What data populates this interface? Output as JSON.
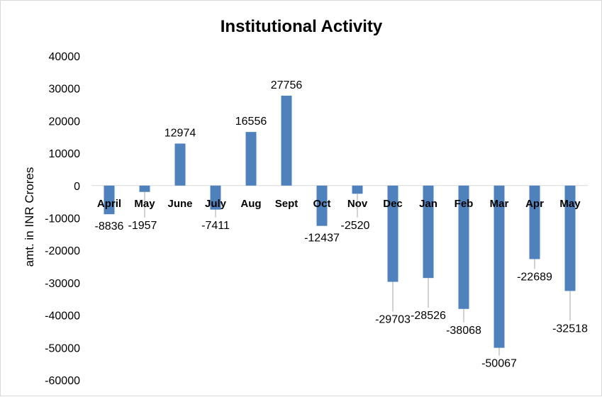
{
  "chart_data": {
    "type": "bar",
    "title": "Institutional Activity",
    "xlabel": "",
    "ylabel": "amt. in INR Crores",
    "ylim": [
      -60000,
      40000
    ],
    "yticks": [
      40000,
      30000,
      20000,
      10000,
      0,
      -10000,
      -20000,
      -30000,
      -40000,
      -50000,
      -60000
    ],
    "ytick_labels": [
      "40000",
      "30000",
      "20000",
      "10000",
      "0",
      "-10000",
      "-20000",
      "-30000",
      "-40000",
      "-50000",
      "-60000"
    ],
    "categories": [
      "April",
      "May",
      "June",
      "July",
      "Aug",
      "Sept",
      "Oct",
      "Nov",
      "Dec",
      "Jan",
      "Feb",
      "Mar",
      "Apr",
      "May"
    ],
    "values": [
      -8836,
      -1957,
      12974,
      -7411,
      16556,
      27756,
      -12437,
      -2520,
      -29703,
      -28526,
      -38068,
      -50067,
      -22689,
      -32518
    ],
    "data_labels": [
      "-8836",
      "-1957",
      "12974",
      "-7411",
      "16556",
      "27756",
      "-12437",
      "-2520",
      "-29703",
      "-28526",
      "-38068",
      "-50067",
      "-22689",
      "-32518"
    ],
    "bar_color": "#4f81bd",
    "grid": false,
    "legend": "none"
  }
}
